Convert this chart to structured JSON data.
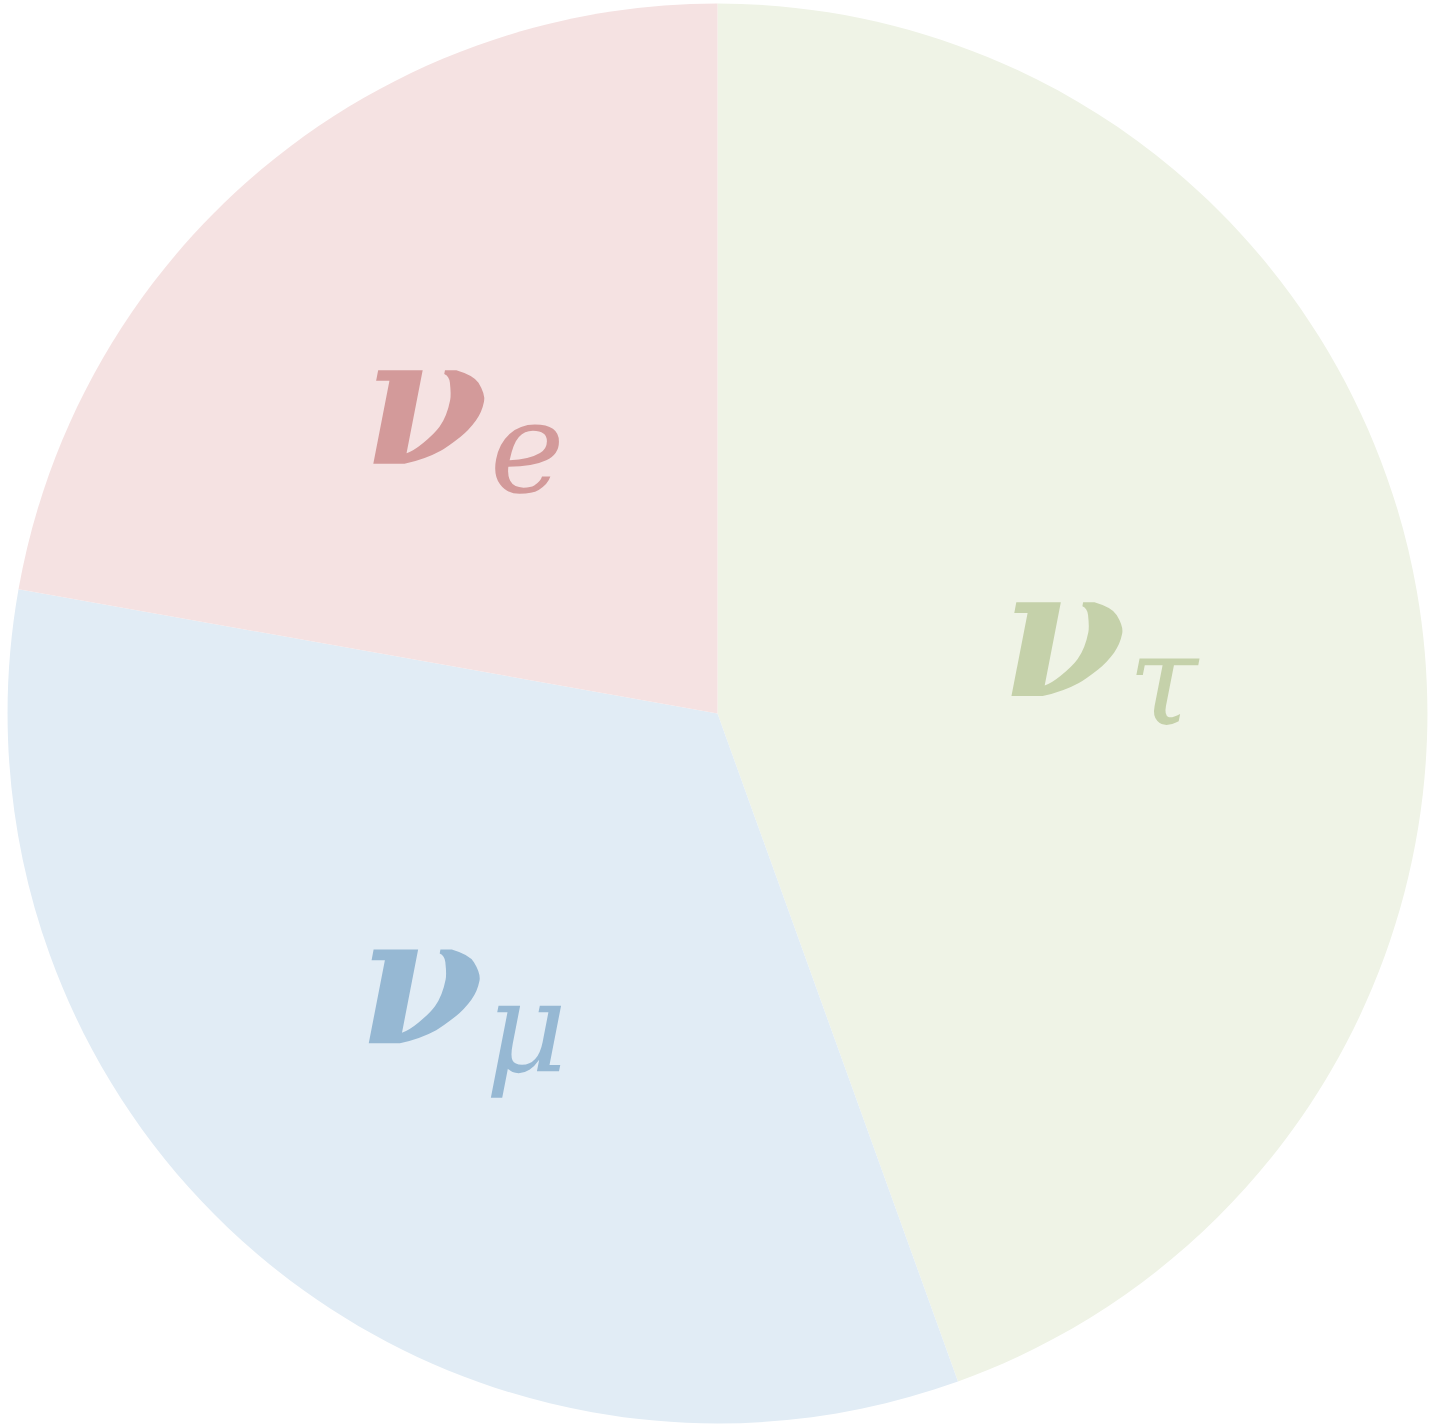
{
  "chart_data": {
    "type": "pie",
    "categories": [
      "ν$_{τ}$",
      "ν$_{μ}$",
      "ν$_{e}$"
    ],
    "values": [
      44.5,
      33.3,
      22.2
    ],
    "colors": [
      "#eff3e6",
      "#e1ecf5",
      "#f5e2e2"
    ]
  }
}
